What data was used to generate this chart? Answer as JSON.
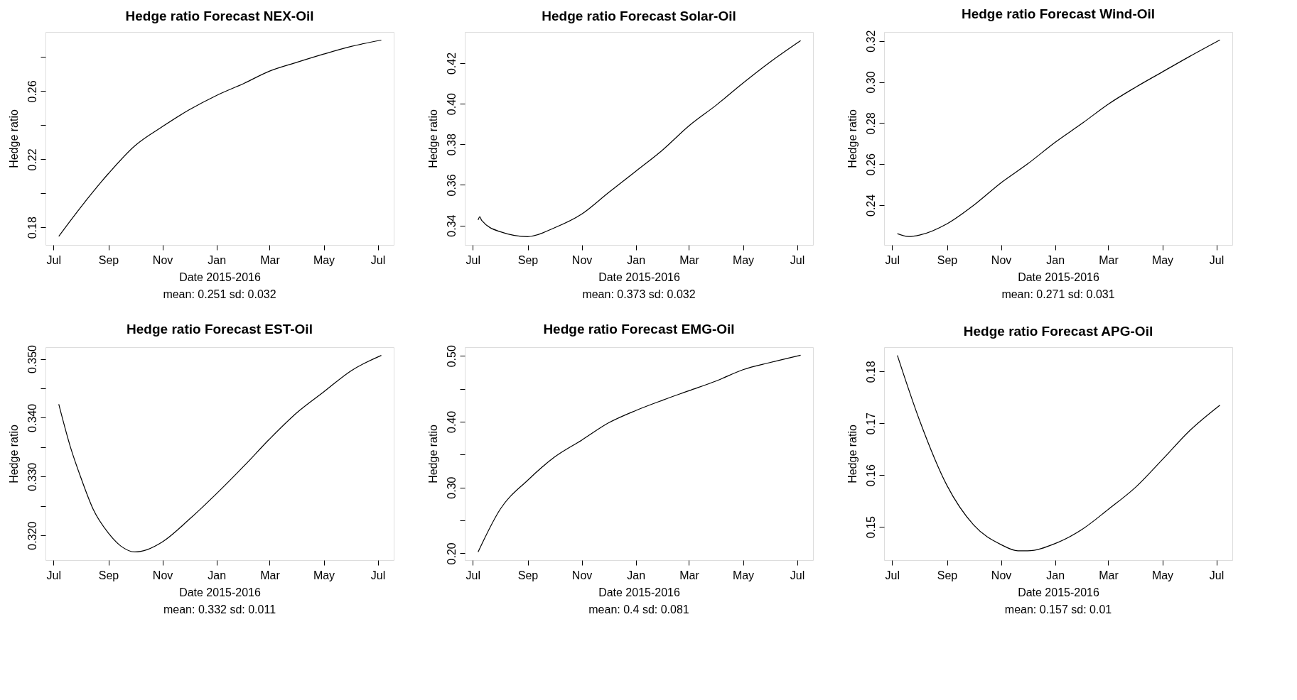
{
  "chart_data": [
    {
      "type": "line",
      "title": "Hedge ratio Forecast NEX-Oil",
      "xlabel": "Date 2015-2016",
      "ylabel": "Hedge ratio",
      "annotations": [
        "mean: 0.251 sd: 0.032"
      ],
      "x": [
        "2015-07-07",
        "2015-08-01",
        "2015-09-01",
        "2015-10-01",
        "2015-11-01",
        "2015-12-01",
        "2016-01-01",
        "2016-02-01",
        "2016-03-01",
        "2016-04-01",
        "2016-05-01",
        "2016-06-01",
        "2016-07-05"
      ],
      "series": [
        {
          "color": "#000000",
          "values": [
            0.1748,
            0.192,
            0.2116,
            0.228,
            0.2392,
            0.249,
            0.2575,
            0.2646,
            0.2718,
            0.277,
            0.2818,
            0.2863,
            0.29
          ]
        }
      ],
      "xlim": [
        "2015-06-22",
        "2016-07-19"
      ],
      "ylim": [
        0.1697,
        0.2948
      ],
      "xticks": [
        {
          "value": "2015-07-01",
          "label": "Jul"
        },
        {
          "value": "2015-09-01",
          "label": "Sep"
        },
        {
          "value": "2015-11-01",
          "label": "Nov"
        },
        {
          "value": "2016-01-01",
          "label": "Jan"
        },
        {
          "value": "2016-03-01",
          "label": "Mar"
        },
        {
          "value": "2016-05-01",
          "label": "May"
        },
        {
          "value": "2016-07-01",
          "label": "Jul"
        }
      ],
      "yticks": [
        {
          "value": 0.18,
          "label": "0.18"
        },
        {
          "value": 0.2,
          "label": null
        },
        {
          "value": 0.22,
          "label": "0.22"
        },
        {
          "value": 0.24,
          "label": null
        },
        {
          "value": 0.26,
          "label": "0.26"
        },
        {
          "value": 0.28,
          "label": null
        }
      ]
    },
    {
      "type": "line",
      "title": "Hedge ratio Forecast Solar-Oil",
      "xlabel": "Date 2015-2016",
      "ylabel": "Hedge ratio",
      "annotations": [
        "mean: 0.373 sd: 0.032"
      ],
      "x": [
        "2015-07-07",
        "2015-07-09",
        "2015-07-11",
        "2015-08-01",
        "2015-09-01",
        "2015-10-01",
        "2015-11-01",
        "2015-12-01",
        "2016-01-01",
        "2016-02-01",
        "2016-03-01",
        "2016-04-01",
        "2016-05-01",
        "2016-06-01",
        "2016-07-05"
      ],
      "series": [
        {
          "color": "#000000",
          "values": [
            0.3427,
            0.3443,
            0.3425,
            0.3369,
            0.3345,
            0.3388,
            0.3456,
            0.3561,
            0.3667,
            0.3775,
            0.3891,
            0.3994,
            0.4102,
            0.4207,
            0.4311
          ]
        }
      ],
      "xlim": [
        "2015-06-22",
        "2016-07-19"
      ],
      "ylim": [
        0.3304,
        0.4354
      ],
      "xticks": [
        {
          "value": "2015-07-01",
          "label": "Jul"
        },
        {
          "value": "2015-09-01",
          "label": "Sep"
        },
        {
          "value": "2015-11-01",
          "label": "Nov"
        },
        {
          "value": "2016-01-01",
          "label": "Jan"
        },
        {
          "value": "2016-03-01",
          "label": "Mar"
        },
        {
          "value": "2016-05-01",
          "label": "May"
        },
        {
          "value": "2016-07-01",
          "label": "Jul"
        }
      ],
      "yticks": [
        {
          "value": 0.34,
          "label": "0.34"
        },
        {
          "value": 0.36,
          "label": "0.36"
        },
        {
          "value": 0.38,
          "label": "0.38"
        },
        {
          "value": 0.4,
          "label": "0.40"
        },
        {
          "value": 0.42,
          "label": "0.42"
        }
      ]
    },
    {
      "type": "line",
      "title": "Hedge ratio Forecast Wind-Oil",
      "xlabel": "Date 2015-2016",
      "ylabel": "Hedge ratio",
      "annotations": [
        "mean: 0.271 sd: 0.031"
      ],
      "x": [
        "2015-07-07",
        "2015-07-20",
        "2015-08-01",
        "2015-09-01",
        "2015-10-01",
        "2015-11-01",
        "2015-12-01",
        "2016-01-01",
        "2016-02-01",
        "2016-03-01",
        "2016-04-01",
        "2016-05-01",
        "2016-06-01",
        "2016-07-05"
      ],
      "series": [
        {
          "color": "#000000",
          "values": [
            0.2261,
            0.2247,
            0.2254,
            0.2309,
            0.2399,
            0.2509,
            0.2601,
            0.2706,
            0.28,
            0.2892,
            0.2975,
            0.3049,
            0.3125,
            0.3205
          ]
        }
      ],
      "xlim": [
        "2015-06-22",
        "2016-07-19"
      ],
      "ylim": [
        0.2206,
        0.3244
      ],
      "xticks": [
        {
          "value": "2015-07-01",
          "label": "Jul"
        },
        {
          "value": "2015-09-01",
          "label": "Sep"
        },
        {
          "value": "2015-11-01",
          "label": "Nov"
        },
        {
          "value": "2016-01-01",
          "label": "Jan"
        },
        {
          "value": "2016-03-01",
          "label": "Mar"
        },
        {
          "value": "2016-05-01",
          "label": "May"
        },
        {
          "value": "2016-07-01",
          "label": "Jul"
        }
      ],
      "yticks": [
        {
          "value": 0.24,
          "label": "0.24"
        },
        {
          "value": 0.26,
          "label": "0.26"
        },
        {
          "value": 0.28,
          "label": "0.28"
        },
        {
          "value": 0.3,
          "label": "0.30"
        },
        {
          "value": 0.32,
          "label": "0.32"
        }
      ]
    },
    {
      "type": "line",
      "title": "Hedge ratio Forecast EST-Oil",
      "xlabel": "Date 2015-2016",
      "ylabel": "Hedge ratio",
      "annotations": [
        "mean: 0.332 sd: 0.011"
      ],
      "x": [
        "2015-07-07",
        "2015-07-20",
        "2015-08-01",
        "2015-08-15",
        "2015-09-01",
        "2015-09-15",
        "2015-10-01",
        "2015-10-15",
        "2015-11-01",
        "2015-12-01",
        "2016-01-01",
        "2016-02-01",
        "2016-03-01",
        "2016-04-01",
        "2016-05-01",
        "2016-06-01",
        "2016-07-05"
      ],
      "series": [
        {
          "color": "#000000",
          "values": [
            0.3423,
            0.3351,
            0.3298,
            0.3244,
            0.3204,
            0.3182,
            0.3172,
            0.3176,
            0.3189,
            0.3227,
            0.3271,
            0.3318,
            0.3364,
            0.3409,
            0.3444,
            0.348,
            0.3506
          ]
        }
      ],
      "xlim": [
        "2015-06-22",
        "2016-07-19"
      ],
      "ylim": [
        0.3158,
        0.352
      ],
      "xticks": [
        {
          "value": "2015-07-01",
          "label": "Jul"
        },
        {
          "value": "2015-09-01",
          "label": "Sep"
        },
        {
          "value": "2015-11-01",
          "label": "Nov"
        },
        {
          "value": "2016-01-01",
          "label": "Jan"
        },
        {
          "value": "2016-03-01",
          "label": "Mar"
        },
        {
          "value": "2016-05-01",
          "label": "May"
        },
        {
          "value": "2016-07-01",
          "label": "Jul"
        }
      ],
      "yticks": [
        {
          "value": 0.32,
          "label": "0.320"
        },
        {
          "value": 0.325,
          "label": null
        },
        {
          "value": 0.33,
          "label": "0.330"
        },
        {
          "value": 0.335,
          "label": null
        },
        {
          "value": 0.34,
          "label": "0.340"
        },
        {
          "value": 0.345,
          "label": null
        },
        {
          "value": 0.35,
          "label": "0.350"
        }
      ]
    },
    {
      "type": "line",
      "title": "Hedge ratio Forecast EMG-Oil",
      "xlabel": "Date 2015-2016",
      "ylabel": "Hedge ratio",
      "annotations": [
        "mean: 0.4 sd: 0.081"
      ],
      "x": [
        "2015-07-07",
        "2015-08-01",
        "2015-09-01",
        "2015-10-01",
        "2015-11-01",
        "2015-12-01",
        "2016-01-01",
        "2016-02-01",
        "2016-03-01",
        "2016-04-01",
        "2016-05-01",
        "2016-06-01",
        "2016-07-05"
      ],
      "series": [
        {
          "color": "#000000",
          "values": [
            0.202,
            0.267,
            0.311,
            0.346,
            0.372,
            0.398,
            0.417,
            0.433,
            0.447,
            0.462,
            0.479,
            0.49,
            0.501
          ]
        }
      ],
      "xlim": [
        "2015-06-22",
        "2016-07-19"
      ],
      "ylim": [
        0.1896,
        0.5132
      ],
      "xticks": [
        {
          "value": "2015-07-01",
          "label": "Jul"
        },
        {
          "value": "2015-09-01",
          "label": "Sep"
        },
        {
          "value": "2015-11-01",
          "label": "Nov"
        },
        {
          "value": "2016-01-01",
          "label": "Jan"
        },
        {
          "value": "2016-03-01",
          "label": "Mar"
        },
        {
          "value": "2016-05-01",
          "label": "May"
        },
        {
          "value": "2016-07-01",
          "label": "Jul"
        }
      ],
      "yticks": [
        {
          "value": 0.2,
          "label": "0.20"
        },
        {
          "value": 0.25,
          "label": null
        },
        {
          "value": 0.3,
          "label": "0.30"
        },
        {
          "value": 0.35,
          "label": null
        },
        {
          "value": 0.4,
          "label": "0.40"
        },
        {
          "value": 0.45,
          "label": null
        },
        {
          "value": 0.5,
          "label": "0.50"
        }
      ]
    },
    {
      "type": "line",
      "title": "Hedge ratio Forecast APG-Oil",
      "xlabel": "Date 2015-2016",
      "ylabel": "Hedge ratio",
      "annotations": [
        "mean: 0.157 sd: 0.01"
      ],
      "x": [
        "2015-07-07",
        "2015-08-01",
        "2015-09-01",
        "2015-10-01",
        "2015-11-01",
        "2015-11-20",
        "2015-12-01",
        "2016-01-01",
        "2016-02-01",
        "2016-03-01",
        "2016-04-01",
        "2016-05-01",
        "2016-06-01",
        "2016-07-05"
      ],
      "series": [
        {
          "color": "#000000",
          "values": [
            0.1831,
            0.1706,
            0.158,
            0.1504,
            0.1466,
            0.1454,
            0.1454,
            0.1468,
            0.1496,
            0.1534,
            0.1577,
            0.163,
            0.1686,
            0.1735
          ]
        }
      ],
      "xlim": [
        "2015-06-22",
        "2016-07-19"
      ],
      "ylim": [
        0.1436,
        0.1847
      ],
      "xticks": [
        {
          "value": "2015-07-01",
          "label": "Jul"
        },
        {
          "value": "2015-09-01",
          "label": "Sep"
        },
        {
          "value": "2015-11-01",
          "label": "Nov"
        },
        {
          "value": "2016-01-01",
          "label": "Jan"
        },
        {
          "value": "2016-03-01",
          "label": "Mar"
        },
        {
          "value": "2016-05-01",
          "label": "May"
        },
        {
          "value": "2016-07-01",
          "label": "Jul"
        }
      ],
      "yticks": [
        {
          "value": 0.15,
          "label": "0.15"
        },
        {
          "value": 0.16,
          "label": "0.16"
        },
        {
          "value": 0.17,
          "label": "0.17"
        },
        {
          "value": 0.18,
          "label": "0.18"
        }
      ]
    }
  ]
}
